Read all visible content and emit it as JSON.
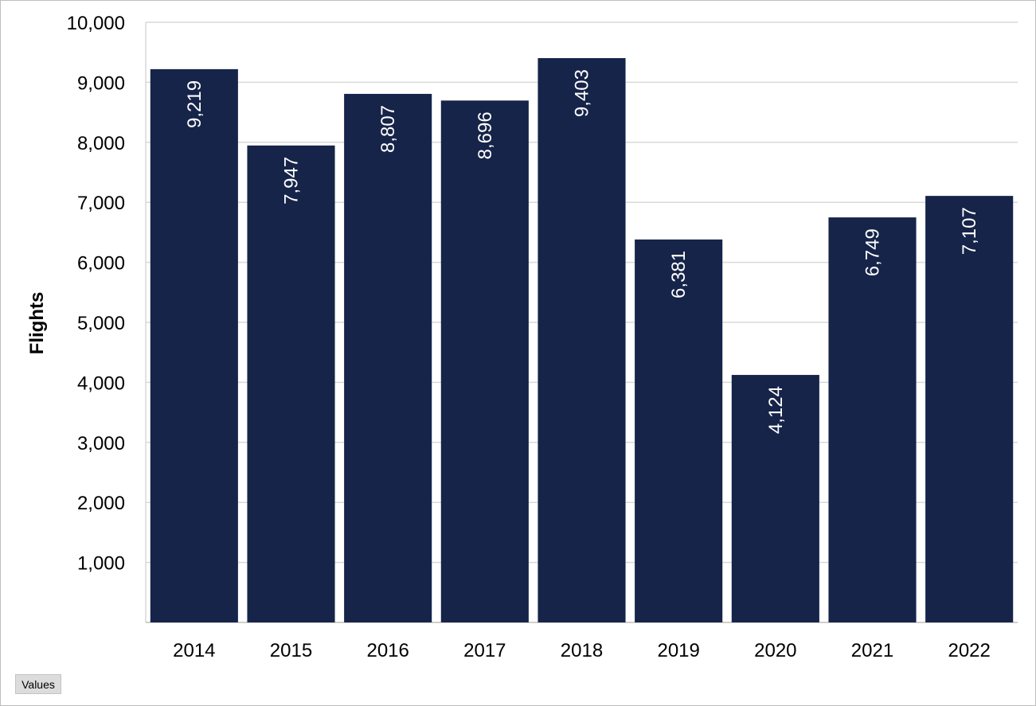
{
  "chart_data": {
    "type": "bar",
    "categories": [
      "2014",
      "2015",
      "2016",
      "2017",
      "2018",
      "2019",
      "2020",
      "2021",
      "2022"
    ],
    "values": [
      9219,
      7947,
      8807,
      8696,
      9403,
      6381,
      4124,
      6749,
      7107
    ],
    "data_labels": [
      "9,219",
      "7,947",
      "8,807",
      "8,696",
      "9,403",
      "6,381",
      "4,124",
      "6,749",
      "7,107"
    ],
    "title": "",
    "xlabel": "",
    "ylabel": "Flights",
    "ylim": [
      0,
      10000
    ],
    "yticks": [
      1000,
      2000,
      3000,
      4000,
      5000,
      6000,
      7000,
      8000,
      9000,
      10000
    ],
    "ytick_labels": [
      "1,000",
      "2,000",
      "3,000",
      "4,000",
      "5,000",
      "6,000",
      "7,000",
      "8,000",
      "9,000",
      "10,000"
    ],
    "grid": true,
    "legend": "none",
    "bar_color": "#162449",
    "data_label_color": "#ffffff",
    "data_label_orientation": "rotated-vertical-inside-end"
  },
  "controls": {
    "values_button_label": "Values"
  }
}
